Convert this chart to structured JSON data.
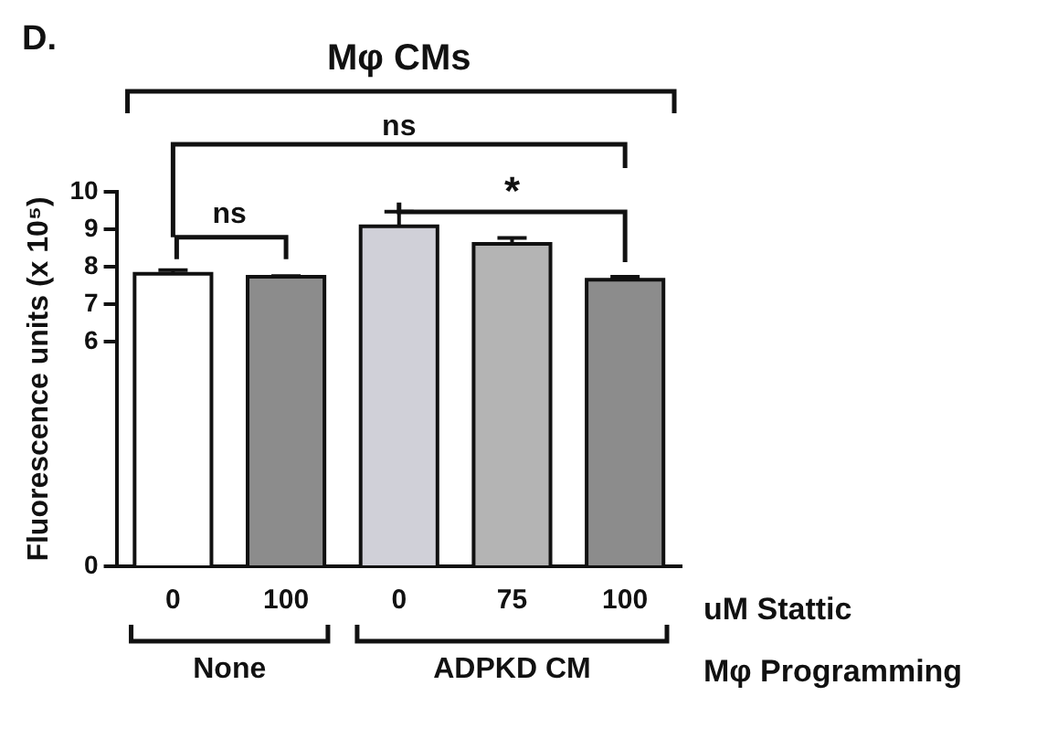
{
  "chart_data": {
    "type": "bar",
    "ylabel": "Fluorescence units (x 10⁵)",
    "categories": [
      "0",
      "100",
      "0",
      "75",
      "100"
    ],
    "values": [
      7.81,
      7.73,
      9.08,
      8.61,
      7.65
    ],
    "colors": [
      "#ffffff",
      "#8c8c8c",
      "#d0d0d8",
      "#b4b4b4",
      "#8c8c8c"
    ],
    "errors": [
      [
        7.81,
        7.91
      ],
      [
        7.73,
        7.75
      ],
      [
        9.08,
        9.47
      ],
      [
        8.61,
        8.77
      ],
      [
        7.65,
        7.73
      ]
    ],
    "ylim": [
      0,
      10
    ],
    "yticks": [
      0,
      6,
      7,
      8,
      9,
      10
    ],
    "grid": false,
    "legend": false,
    "annotations": [
      "D.",
      "Mφ CMs",
      "ns",
      "*",
      "ns",
      "uM Stattic",
      "None",
      "ADPKD CM",
      "Mφ Programming"
    ]
  }
}
